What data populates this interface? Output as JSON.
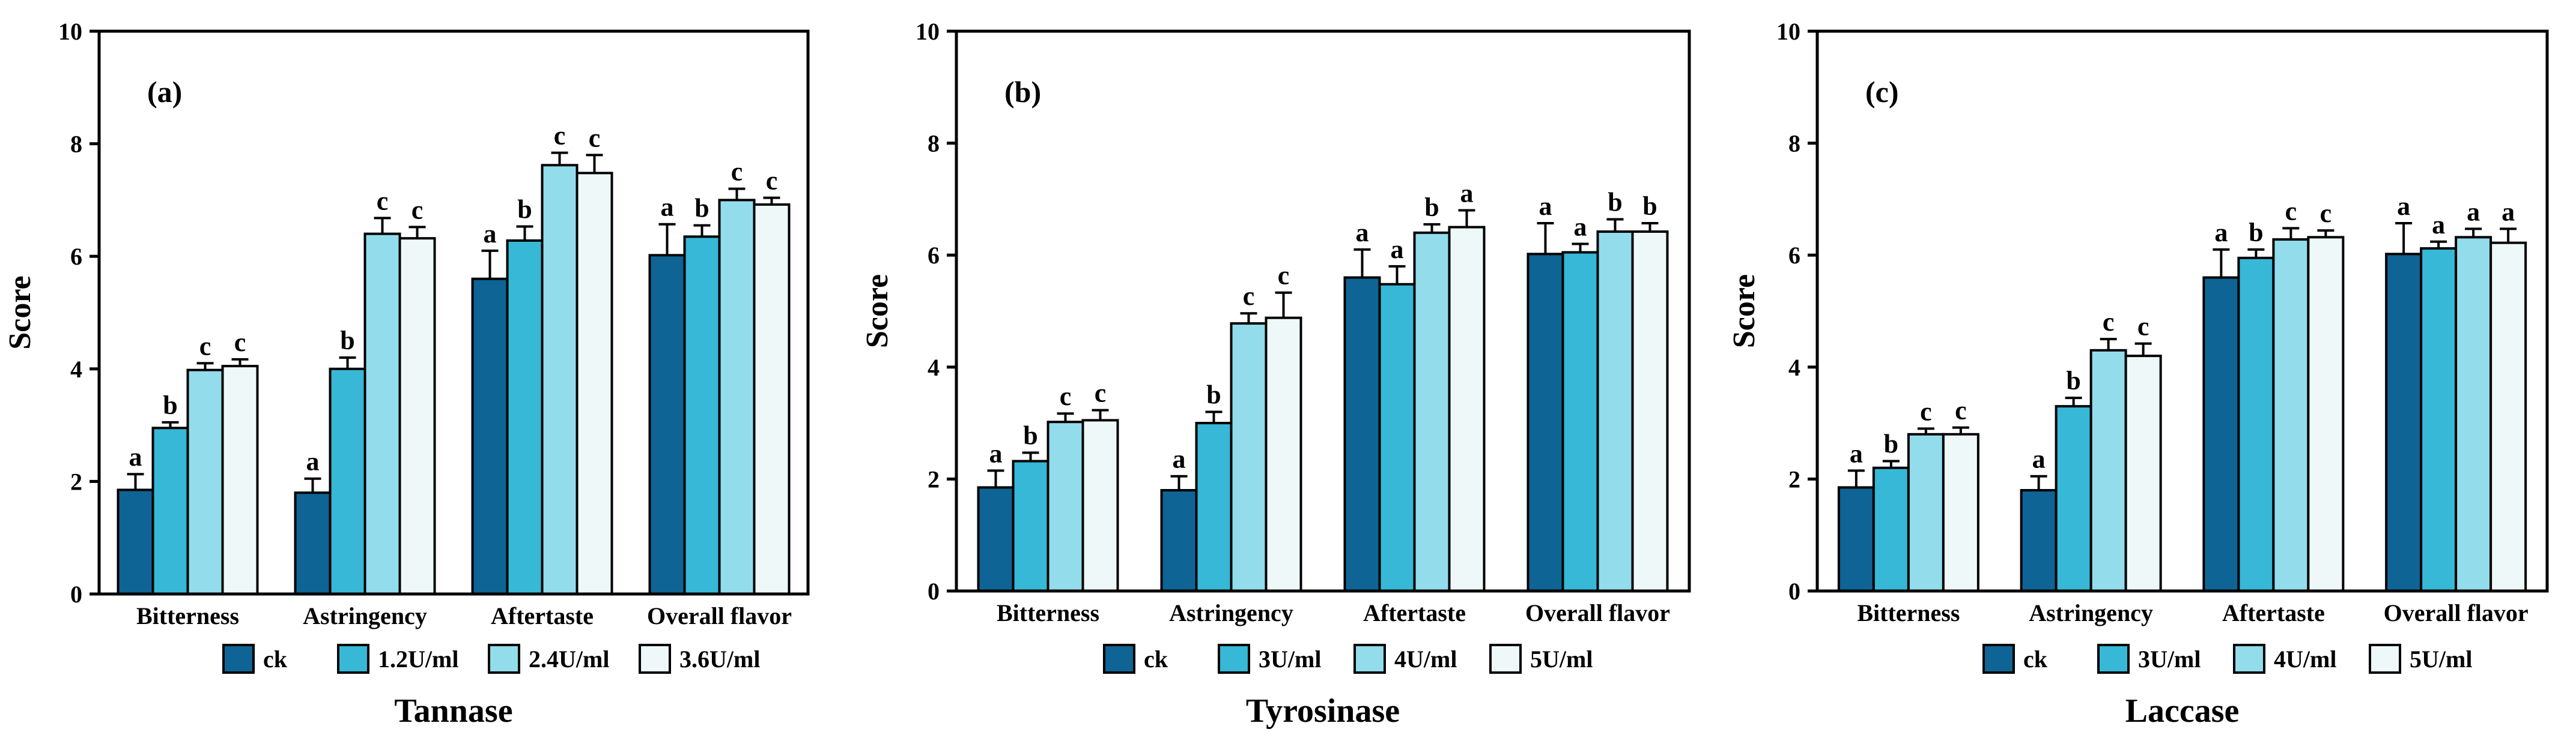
{
  "colors": {
    "series": [
      "#0E6494",
      "#36B8D6",
      "#92DCEC",
      "#EEF8F9"
    ],
    "stroke": "#000000"
  },
  "chart_data": [
    {
      "type": "bar",
      "panel_label": "(a)",
      "title": "Tannase",
      "xlabel": "",
      "ylabel": "Score",
      "ylim": [
        0,
        10
      ],
      "yticks": [
        "0",
        "2",
        "4",
        "6",
        "8",
        "10"
      ],
      "grid": false,
      "legend_position": "bottom",
      "categories": [
        "Bitterness",
        "Astringency",
        "Aftertaste",
        "Overall flavor"
      ],
      "series": [
        {
          "name": "ck",
          "values": [
            1.85,
            1.8,
            5.6,
            6.02
          ],
          "errors": [
            0.28,
            0.25,
            0.5,
            0.55
          ],
          "labels": [
            "a",
            "a",
            "a",
            "a"
          ]
        },
        {
          "name": "1.2U/ml",
          "values": [
            2.95,
            4.0,
            6.28,
            6.35
          ],
          "errors": [
            0.1,
            0.2,
            0.25,
            0.2
          ],
          "labels": [
            "b",
            "b",
            "b",
            "b"
          ]
        },
        {
          "name": "2.4U/ml",
          "values": [
            3.98,
            6.4,
            7.62,
            7.0
          ],
          "errors": [
            0.12,
            0.28,
            0.22,
            0.2
          ],
          "labels": [
            "c",
            "c",
            "c",
            "c"
          ]
        },
        {
          "name": "3.6U/ml",
          "values": [
            4.05,
            6.32,
            7.48,
            6.92
          ],
          "errors": [
            0.12,
            0.2,
            0.32,
            0.12
          ],
          "labels": [
            "c",
            "c",
            "c",
            "c"
          ]
        }
      ]
    },
    {
      "type": "bar",
      "panel_label": "(b)",
      "title": "Tyrosinase",
      "xlabel": "",
      "ylabel": "Score",
      "ylim": [
        0,
        10
      ],
      "yticks": [
        "0",
        "2",
        "4",
        "6",
        "8",
        "10"
      ],
      "grid": false,
      "legend_position": "bottom",
      "categories": [
        "Bitterness",
        "Astringency",
        "Aftertaste",
        "Overall flavor"
      ],
      "series": [
        {
          "name": "ck",
          "values": [
            1.85,
            1.8,
            5.6,
            6.02
          ],
          "errors": [
            0.3,
            0.25,
            0.5,
            0.55
          ],
          "labels": [
            "a",
            "a",
            "a",
            "a"
          ]
        },
        {
          "name": "3U/ml",
          "values": [
            2.32,
            3.0,
            5.48,
            6.05
          ],
          "errors": [
            0.15,
            0.2,
            0.32,
            0.15
          ],
          "labels": [
            "b",
            "b",
            "a",
            "a"
          ]
        },
        {
          "name": "4U/ml",
          "values": [
            3.02,
            4.78,
            6.4,
            6.42
          ],
          "errors": [
            0.15,
            0.18,
            0.15,
            0.22
          ],
          "labels": [
            "c",
            "c",
            "b",
            "b"
          ]
        },
        {
          "name": "5U/ml",
          "values": [
            3.05,
            4.88,
            6.5,
            6.42
          ],
          "errors": [
            0.18,
            0.45,
            0.3,
            0.15
          ],
          "labels": [
            "c",
            "c",
            "a",
            "b"
          ]
        }
      ]
    },
    {
      "type": "bar",
      "panel_label": "(c)",
      "title": "Laccase",
      "xlabel": "",
      "ylabel": "Score",
      "ylim": [
        0,
        10
      ],
      "yticks": [
        "0",
        "2",
        "4",
        "6",
        "8",
        "10"
      ],
      "grid": false,
      "legend_position": "bottom",
      "categories": [
        "Bitterness",
        "Astringency",
        "Aftertaste",
        "Overall flavor"
      ],
      "series": [
        {
          "name": "ck",
          "values": [
            1.85,
            1.8,
            5.6,
            6.02
          ],
          "errors": [
            0.3,
            0.25,
            0.5,
            0.55
          ],
          "labels": [
            "a",
            "a",
            "a",
            "a"
          ]
        },
        {
          "name": "3U/ml",
          "values": [
            2.2,
            3.3,
            5.95,
            6.12
          ],
          "errors": [
            0.12,
            0.15,
            0.15,
            0.12
          ],
          "labels": [
            "b",
            "b",
            "b",
            "a"
          ]
        },
        {
          "name": "4U/ml",
          "values": [
            2.8,
            4.3,
            6.28,
            6.32
          ],
          "errors": [
            0.1,
            0.2,
            0.2,
            0.15
          ],
          "labels": [
            "c",
            "c",
            "c",
            "a"
          ]
        },
        {
          "name": "5U/ml",
          "values": [
            2.8,
            4.2,
            6.32,
            6.22
          ],
          "errors": [
            0.12,
            0.22,
            0.12,
            0.25
          ],
          "labels": [
            "c",
            "c",
            "c",
            "a"
          ]
        }
      ]
    }
  ]
}
